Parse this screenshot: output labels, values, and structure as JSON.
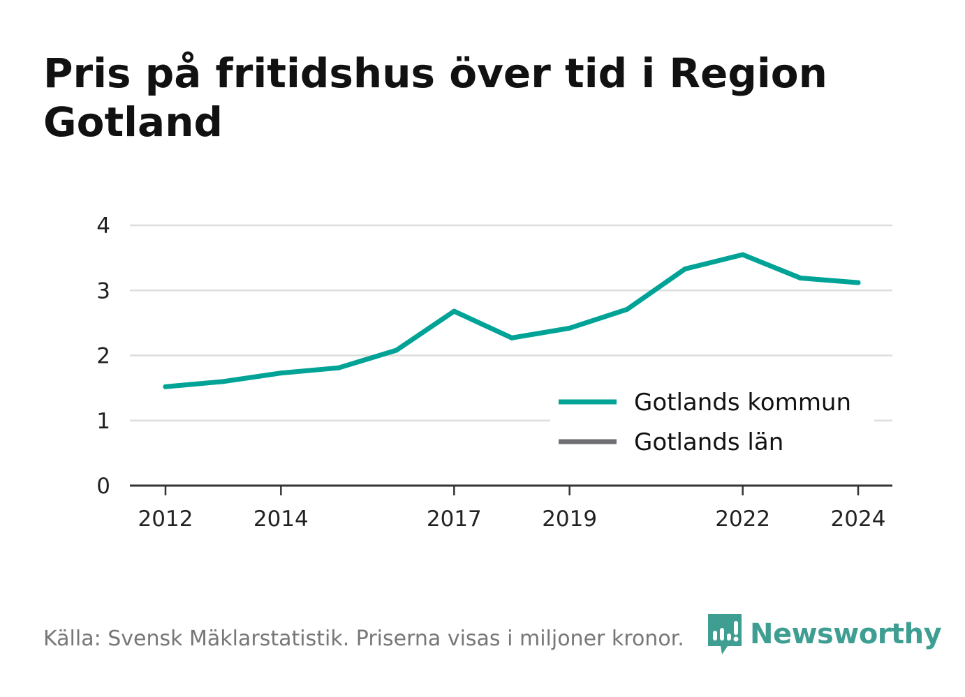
{
  "title": "Pris på fritidshus över tid i Region Gotland",
  "footer": {
    "source": "Källa: Svensk Mäklarstatistik. Priserna visas i miljoner kronor.",
    "brand": "Newsworthy",
    "brand_icon": "newsworthy-logo-icon"
  },
  "colors": {
    "series_primary": "#00a396",
    "series_secondary": "#707074",
    "grid": "#dddddd",
    "axis": "#333333",
    "brand": "#3f9e92"
  },
  "chart_data": {
    "type": "line",
    "title": "Pris på fritidshus över tid i Region Gotland",
    "xlabel": "",
    "ylabel": "",
    "xlim": [
      2011.4,
      2024.6
    ],
    "ylim": [
      0,
      4
    ],
    "yticks": [
      0,
      1,
      2,
      3,
      4
    ],
    "xticks": [
      2012,
      2014,
      2017,
      2019,
      2022,
      2024
    ],
    "grid": true,
    "legend_position": "bottom-right",
    "series": [
      {
        "name": "Gotlands kommun",
        "color": "#00a396",
        "x": [
          2012,
          2013,
          2014,
          2015,
          2016,
          2017,
          2018,
          2019,
          2020,
          2021,
          2022,
          2023,
          2024
        ],
        "values": [
          1.52,
          1.6,
          1.73,
          1.81,
          2.08,
          2.68,
          2.27,
          2.42,
          2.71,
          3.33,
          3.55,
          3.19,
          3.12
        ]
      },
      {
        "name": "Gotlands län",
        "color": "#707074",
        "x": [],
        "values": []
      }
    ]
  }
}
